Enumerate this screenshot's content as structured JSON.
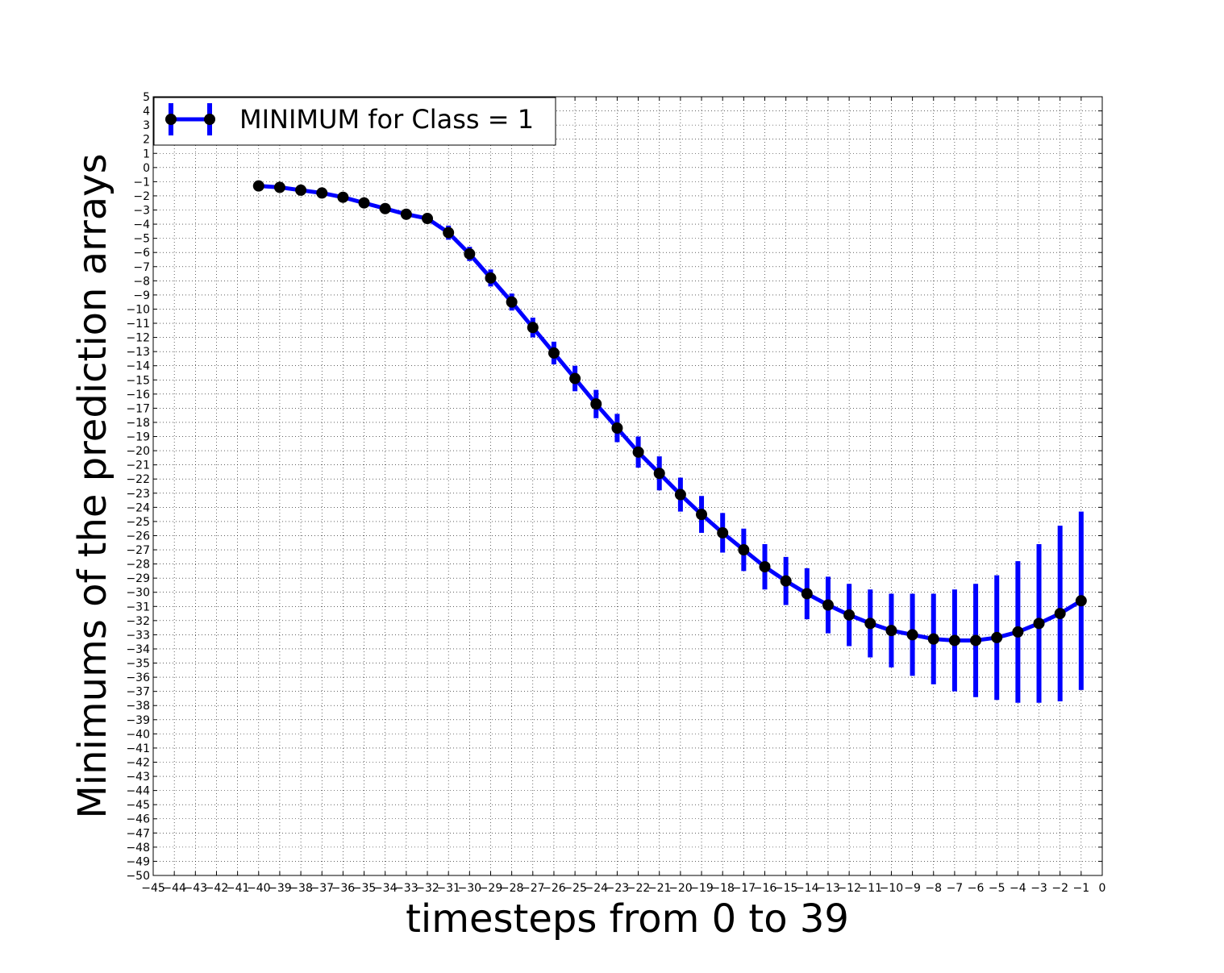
{
  "chart_data": {
    "type": "line",
    "title": "",
    "xlabel": "timesteps from 0 to 39",
    "ylabel": "Minimums of the prediction arrays",
    "xlim": [
      -45,
      0
    ],
    "ylim": [
      -50,
      5
    ],
    "xticks": [
      -45,
      -44,
      -43,
      -42,
      -41,
      -40,
      -39,
      -38,
      -37,
      -36,
      -35,
      -34,
      -33,
      -32,
      -31,
      -30,
      -29,
      -28,
      -27,
      -26,
      -25,
      -24,
      -23,
      -22,
      -21,
      -20,
      -19,
      -18,
      -17,
      -16,
      -15,
      -14,
      -13,
      -12,
      -11,
      -10,
      -9,
      -8,
      -7,
      -6,
      -5,
      -4,
      -3,
      -2,
      -1,
      0
    ],
    "yticks": [
      5,
      4,
      3,
      2,
      1,
      0,
      -1,
      -2,
      -3,
      -4,
      -5,
      -6,
      -7,
      -8,
      -9,
      -10,
      -11,
      -12,
      -13,
      -14,
      -15,
      -16,
      -17,
      -18,
      -19,
      -20,
      -21,
      -22,
      -23,
      -24,
      -25,
      -26,
      -27,
      -28,
      -29,
      -30,
      -31,
      -32,
      -33,
      -34,
      -35,
      -36,
      -37,
      -38,
      -39,
      -40,
      -41,
      -42,
      -43,
      -44,
      -45,
      -46,
      -47,
      -48,
      -49,
      -50
    ],
    "grid": true,
    "legend_position": "upper-left",
    "series": [
      {
        "name": "MINIMUM for Class = 1",
        "line_color": "#0000ff",
        "marker_color": "#000000",
        "x": [
          -40,
          -39,
          -38,
          -37,
          -36,
          -35,
          -34,
          -33,
          -32,
          -31,
          -30,
          -29,
          -28,
          -27,
          -26,
          -25,
          -24,
          -23,
          -22,
          -21,
          -20,
          -19,
          -18,
          -17,
          -16,
          -15,
          -14,
          -13,
          -12,
          -11,
          -10,
          -9,
          -8,
          -7,
          -6,
          -5,
          -4,
          -3,
          -2,
          -1
        ],
        "y": [
          -1.3,
          -1.4,
          -1.6,
          -1.8,
          -2.1,
          -2.5,
          -2.9,
          -3.3,
          -3.6,
          -4.6,
          -6.1,
          -7.8,
          -9.5,
          -11.3,
          -13.1,
          -14.9,
          -16.7,
          -18.4,
          -20.1,
          -21.6,
          -23.1,
          -24.5,
          -25.8,
          -27.0,
          -28.2,
          -29.2,
          -30.1,
          -30.9,
          -31.6,
          -32.2,
          -32.7,
          -33.0,
          -33.3,
          -33.4,
          -33.4,
          -33.2,
          -32.8,
          -32.2,
          -31.5,
          -30.6
        ],
        "yerr": [
          0,
          0,
          0,
          0,
          0,
          0,
          0,
          0,
          0,
          0.5,
          0.5,
          0.6,
          0.6,
          0.7,
          0.8,
          0.9,
          1.0,
          1.0,
          1.1,
          1.2,
          1.2,
          1.3,
          1.4,
          1.5,
          1.6,
          1.7,
          1.8,
          2.0,
          2.2,
          2.4,
          2.6,
          2.9,
          3.2,
          3.6,
          4.0,
          4.4,
          5.0,
          5.6,
          6.2,
          6.3
        ]
      }
    ]
  }
}
